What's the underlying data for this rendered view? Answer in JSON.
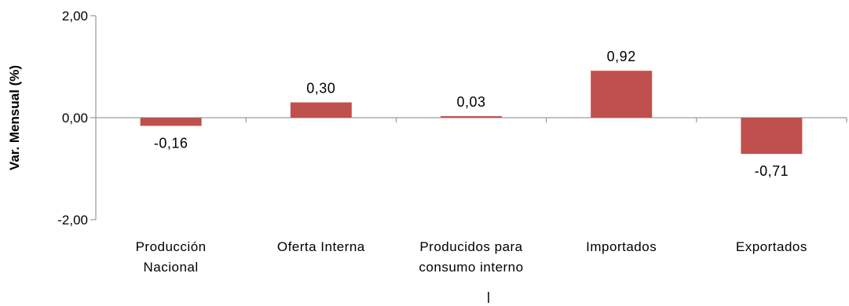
{
  "chart_data": {
    "type": "bar",
    "categories": [
      [
        "Producción",
        "Nacional"
      ],
      [
        "Oferta Interna"
      ],
      [
        "Producidos para",
        "consumo interno"
      ],
      [
        "Importados"
      ],
      [
        "Exportados"
      ]
    ],
    "values": [
      -0.16,
      0.3,
      0.03,
      0.92,
      -0.71
    ],
    "value_labels": [
      "-0,16",
      "0,30",
      "0,03",
      "0,92",
      "-0,71"
    ],
    "ylabel": "Var. Mensual (%)",
    "ylim": [
      -2,
      2
    ],
    "yticks": [
      2,
      0,
      -2
    ],
    "ytick_labels": [
      "2,00",
      "0,00",
      "-2,00"
    ],
    "bar_color": "#c0504d",
    "axis_color": "#868686",
    "grid": false,
    "legend": "none"
  }
}
